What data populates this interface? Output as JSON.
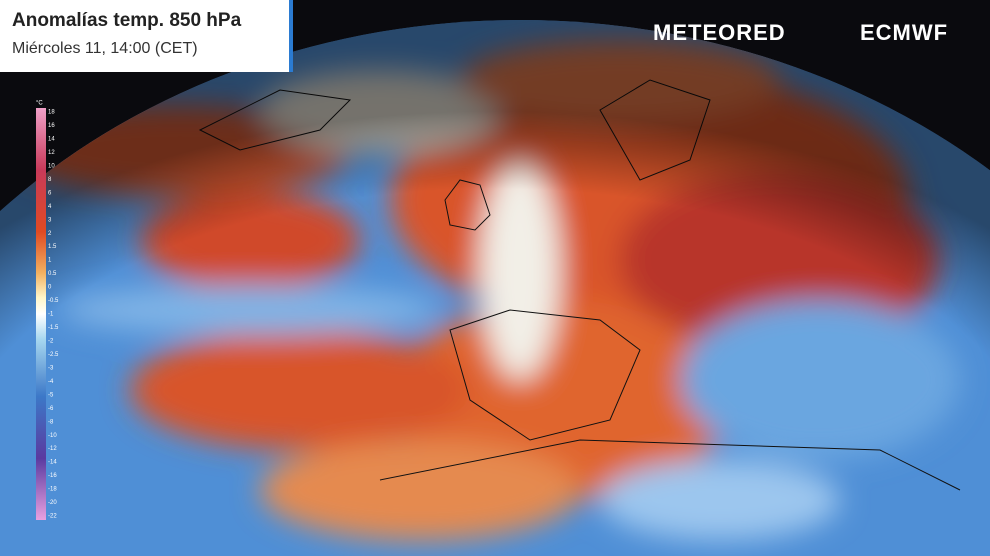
{
  "header": {
    "title": "Anomalías temp. 850 hPa",
    "subtitle": "Miércoles 11, 14:00 (CET)"
  },
  "logos": {
    "brand": "METEORED",
    "partner": "ECMWF"
  },
  "legend": {
    "unit": "°C",
    "ticks": [
      18,
      16,
      14,
      12,
      10,
      8,
      6,
      4,
      3,
      2,
      1.5,
      1,
      0.5,
      0,
      -0.5,
      -1,
      -1.5,
      -2,
      -2.5,
      -3,
      -4,
      -5,
      -6,
      -8,
      -10,
      -12,
      -14,
      -16,
      -18,
      -20,
      -22
    ]
  }
}
